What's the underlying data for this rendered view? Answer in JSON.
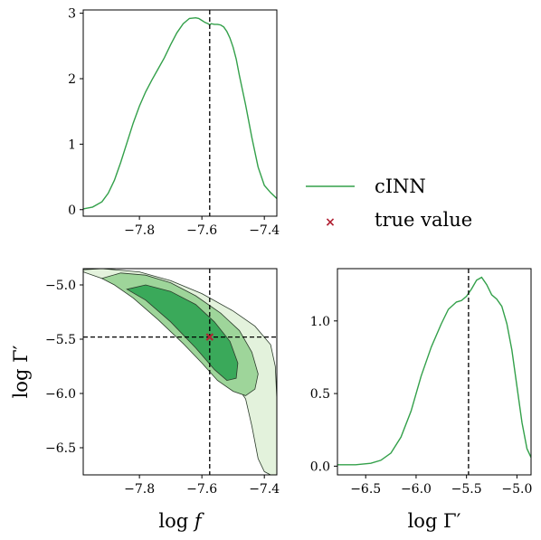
{
  "colors": {
    "line": "#33a04a",
    "contour_outer": "#e3f2dc",
    "contour_mid": "#9ed59a",
    "contour_inner": "#3aa95a",
    "contour_edge": "#2b3b2b",
    "truth_marker": "#b22234"
  },
  "legend": {
    "line_label": "cINN",
    "marker_label": "true value",
    "marker_symbol": "×"
  },
  "axes_labels": {
    "log_f": "log f",
    "log_gamma": "log Γ′"
  },
  "chart_data": [
    {
      "id": "marginal-log-f",
      "type": "line",
      "xlabel": "",
      "ylabel": "",
      "xlim": [
        -7.98,
        -7.36
      ],
      "ylim": [
        -0.1,
        3.05
      ],
      "xticks": [
        -7.8,
        -7.6,
        -7.4
      ],
      "xtick_labels": [
        "−7.8",
        "−7.6",
        "−7.4"
      ],
      "yticks": [
        0,
        1,
        2,
        3
      ],
      "ytick_labels": [
        "0",
        "1",
        "2",
        "3"
      ],
      "truth_x": -7.575,
      "series": [
        {
          "x": [
            -7.98,
            -7.95,
            -7.92,
            -7.9,
            -7.88,
            -7.86,
            -7.84,
            -7.82,
            -7.8,
            -7.78,
            -7.76,
            -7.74,
            -7.72,
            -7.7,
            -7.68,
            -7.66,
            -7.64,
            -7.62,
            -7.61,
            -7.6,
            -7.59,
            -7.58,
            -7.575,
            -7.57,
            -7.56,
            -7.55,
            -7.54,
            -7.53,
            -7.52,
            -7.51,
            -7.5,
            -7.49,
            -7.48,
            -7.46,
            -7.44,
            -7.42,
            -7.4,
            -7.38,
            -7.36
          ],
          "y": [
            0.01,
            0.04,
            0.12,
            0.25,
            0.45,
            0.72,
            1.02,
            1.32,
            1.58,
            1.8,
            1.98,
            2.15,
            2.32,
            2.52,
            2.7,
            2.84,
            2.92,
            2.93,
            2.92,
            2.89,
            2.86,
            2.84,
            2.82,
            2.84,
            2.83,
            2.83,
            2.82,
            2.79,
            2.72,
            2.62,
            2.48,
            2.3,
            2.05,
            1.6,
            1.1,
            0.65,
            0.37,
            0.26,
            0.17
          ]
        }
      ]
    },
    {
      "id": "joint-log-f-log-gamma",
      "type": "heatmap",
      "xlabel": "log f",
      "ylabel": "log Γ′",
      "xlim": [
        -7.98,
        -7.36
      ],
      "ylim": [
        -6.75,
        -4.85
      ],
      "xticks": [
        -7.8,
        -7.6,
        -7.4
      ],
      "xtick_labels": [
        "−7.8",
        "−7.6",
        "−7.4"
      ],
      "yticks": [
        -5.0,
        -5.5,
        -6.0,
        -6.5
      ],
      "ytick_labels": [
        "−5.0",
        "−5.5",
        "−6.0",
        "−6.5"
      ],
      "truth": [
        -7.575,
        -5.48
      ],
      "contours": [
        {
          "level": "outer",
          "x": [
            -7.98,
            -7.92,
            -7.8,
            -7.7,
            -7.6,
            -7.5,
            -7.43,
            -7.38,
            -7.365,
            -7.36,
            -7.36,
            -7.38,
            -7.4,
            -7.42,
            -7.44,
            -7.46,
            -7.5,
            -7.53,
            -7.56,
            -7.59,
            -7.62,
            -7.66,
            -7.72,
            -7.8,
            -7.88,
            -7.95,
            -7.98
          ],
          "y": [
            -4.86,
            -4.85,
            -4.88,
            -4.96,
            -5.08,
            -5.24,
            -5.38,
            -5.55,
            -5.75,
            -6.05,
            -6.75,
            -6.75,
            -6.72,
            -6.6,
            -6.3,
            -6.05,
            -5.88,
            -5.76,
            -5.68,
            -5.58,
            -5.48,
            -5.36,
            -5.22,
            -5.08,
            -4.98,
            -4.91,
            -4.88
          ]
        },
        {
          "level": "mid",
          "x": [
            -7.92,
            -7.86,
            -7.78,
            -7.7,
            -7.62,
            -7.54,
            -7.48,
            -7.44,
            -7.42,
            -7.43,
            -7.46,
            -7.5,
            -7.55,
            -7.6,
            -7.66,
            -7.74,
            -7.82,
            -7.88,
            -7.92
          ],
          "y": [
            -4.94,
            -4.89,
            -4.91,
            -4.98,
            -5.1,
            -5.26,
            -5.42,
            -5.62,
            -5.82,
            -5.96,
            -6.02,
            -5.98,
            -5.88,
            -5.72,
            -5.54,
            -5.32,
            -5.12,
            -5.0,
            -4.94
          ]
        },
        {
          "level": "inner",
          "x": [
            -7.84,
            -7.78,
            -7.7,
            -7.62,
            -7.56,
            -7.51,
            -7.485,
            -7.49,
            -7.52,
            -7.56,
            -7.62,
            -7.7,
            -7.78,
            -7.84
          ],
          "y": [
            -5.04,
            -5.0,
            -5.06,
            -5.18,
            -5.34,
            -5.52,
            -5.72,
            -5.86,
            -5.88,
            -5.78,
            -5.58,
            -5.34,
            -5.14,
            -5.04
          ]
        }
      ]
    },
    {
      "id": "marginal-log-gamma",
      "type": "line",
      "xlabel": "log Γ′",
      "ylabel": "",
      "xlim": [
        -6.78,
        -4.86
      ],
      "ylim": [
        -0.06,
        1.36
      ],
      "xticks": [
        -6.5,
        -6.0,
        -5.5,
        -5.0
      ],
      "xtick_labels": [
        "−6.5",
        "−6.0",
        "−5.5",
        "−5.0"
      ],
      "yticks": [
        0.0,
        0.5,
        1.0
      ],
      "ytick_labels": [
        "0.0",
        "0.5",
        "1.0"
      ],
      "truth_x": -5.48,
      "series": [
        {
          "x": [
            -6.78,
            -6.6,
            -6.45,
            -6.35,
            -6.25,
            -6.15,
            -6.05,
            -5.95,
            -5.85,
            -5.75,
            -5.68,
            -5.6,
            -5.55,
            -5.5,
            -5.45,
            -5.4,
            -5.35,
            -5.3,
            -5.25,
            -5.2,
            -5.15,
            -5.1,
            -5.05,
            -5.0,
            -4.95,
            -4.9,
            -4.86
          ],
          "y": [
            0.01,
            0.01,
            0.02,
            0.04,
            0.09,
            0.2,
            0.38,
            0.62,
            0.82,
            0.98,
            1.08,
            1.13,
            1.14,
            1.17,
            1.22,
            1.28,
            1.3,
            1.25,
            1.18,
            1.15,
            1.1,
            0.98,
            0.8,
            0.55,
            0.3,
            0.12,
            0.06
          ]
        }
      ]
    }
  ]
}
